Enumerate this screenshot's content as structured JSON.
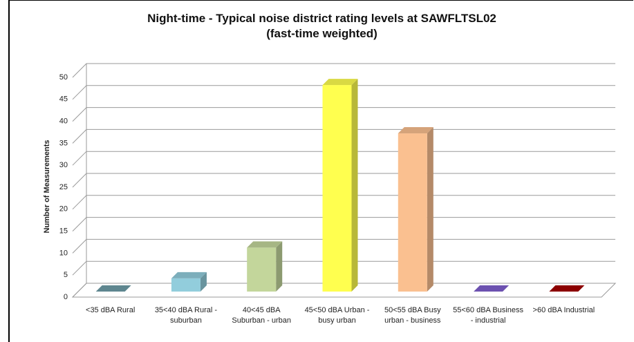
{
  "chart_data": {
    "type": "bar3d",
    "title": [
      "Night-time - Typical noise district rating levels at SAWFLTSL02",
      "(fast-time weighted)"
    ],
    "y_label": "Number of Measurements",
    "categories": [
      "<35 dBA Rural",
      "35<40 dBA Rural - suburban",
      "40<45 dBA Suburban - urban",
      "45<50 dBA Urban - busy urban",
      "50<55 dBA Busy urban - business",
      "55<60 dBA Business - industrial",
      ">60 dBA Industrial"
    ],
    "values": [
      0,
      3,
      10,
      47,
      36,
      0,
      0
    ],
    "colors": [
      "#6e9ea8",
      "#92cddc",
      "#c3d69b",
      "#ffff4f",
      "#fac090",
      "#7f5fcf",
      "#a50000"
    ],
    "ylim": [
      0,
      50
    ],
    "yticks": [
      0,
      5,
      10,
      15,
      20,
      25,
      30,
      35,
      40,
      45,
      50
    ],
    "grid": true
  }
}
